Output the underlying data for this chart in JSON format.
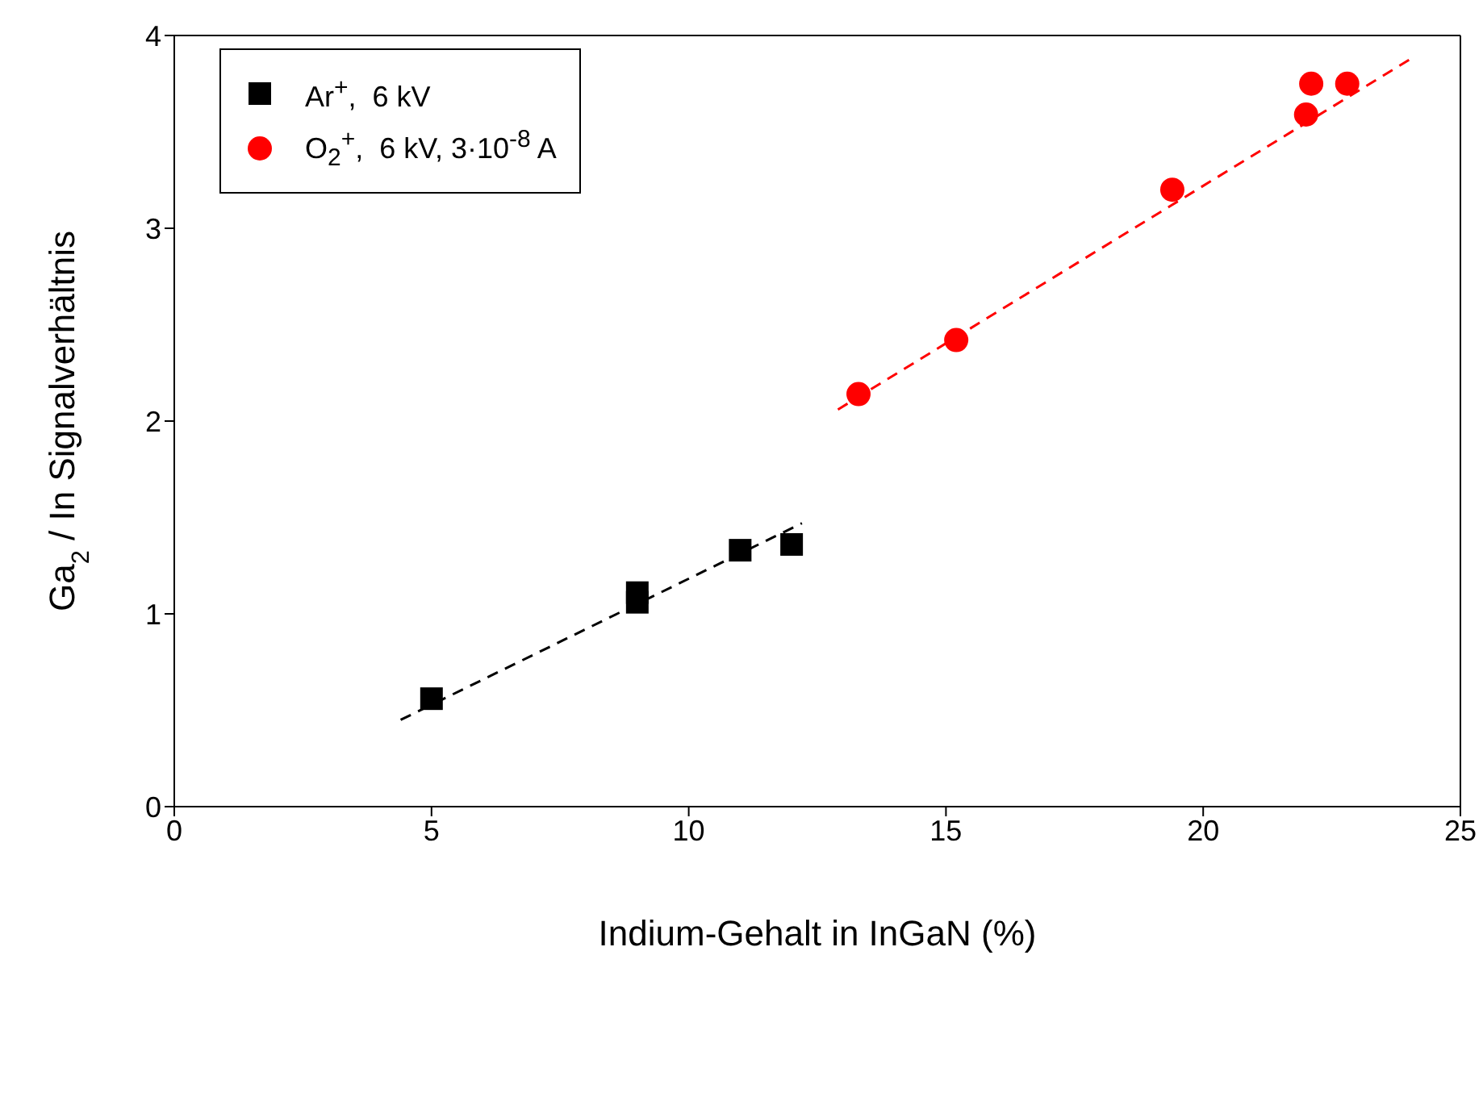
{
  "chart_data": {
    "type": "scatter",
    "xlabel": "Indium-Gehalt in InGaN (%)",
    "ylabel": "Ga$_{2}$ / In Signalverhältnis",
    "xlim": [
      0,
      25
    ],
    "xticks": [
      0,
      5,
      10,
      15,
      20,
      25
    ],
    "ylim": [
      0,
      4
    ],
    "yticks": [
      0,
      1,
      2,
      3,
      4
    ],
    "legend": "top left",
    "series": [
      {
        "name": "Ar$^{+}$,  6 kV",
        "color": "#000000",
        "marker": "square",
        "x": [
          5,
          9,
          9,
          11,
          12
        ],
        "values": [
          0.56,
          1.11,
          1.06,
          1.33,
          1.36
        ]
      },
      {
        "name": "O$_{2}$$^{+}$,  6 kV, 3·10$^{-8}$ A",
        "color": "#ff0000",
        "marker": "circle",
        "x": [
          13.3,
          15.2,
          19.4,
          22.0,
          22.1,
          22.8
        ],
        "values": [
          2.14,
          2.42,
          3.2,
          3.59,
          3.75,
          3.75
        ]
      },
      {
        "type": "line",
        "color": "#000000",
        "line_style": "dashed",
        "marker": "none",
        "x": [
          4.4,
          12.2
        ],
        "values": [
          0.45,
          1.47
        ]
      },
      {
        "type": "line",
        "color": "#ff0000",
        "line_style": "dashed",
        "marker": "none",
        "x": [
          12.9,
          24.1
        ],
        "values": [
          2.06,
          3.89
        ]
      }
    ]
  }
}
